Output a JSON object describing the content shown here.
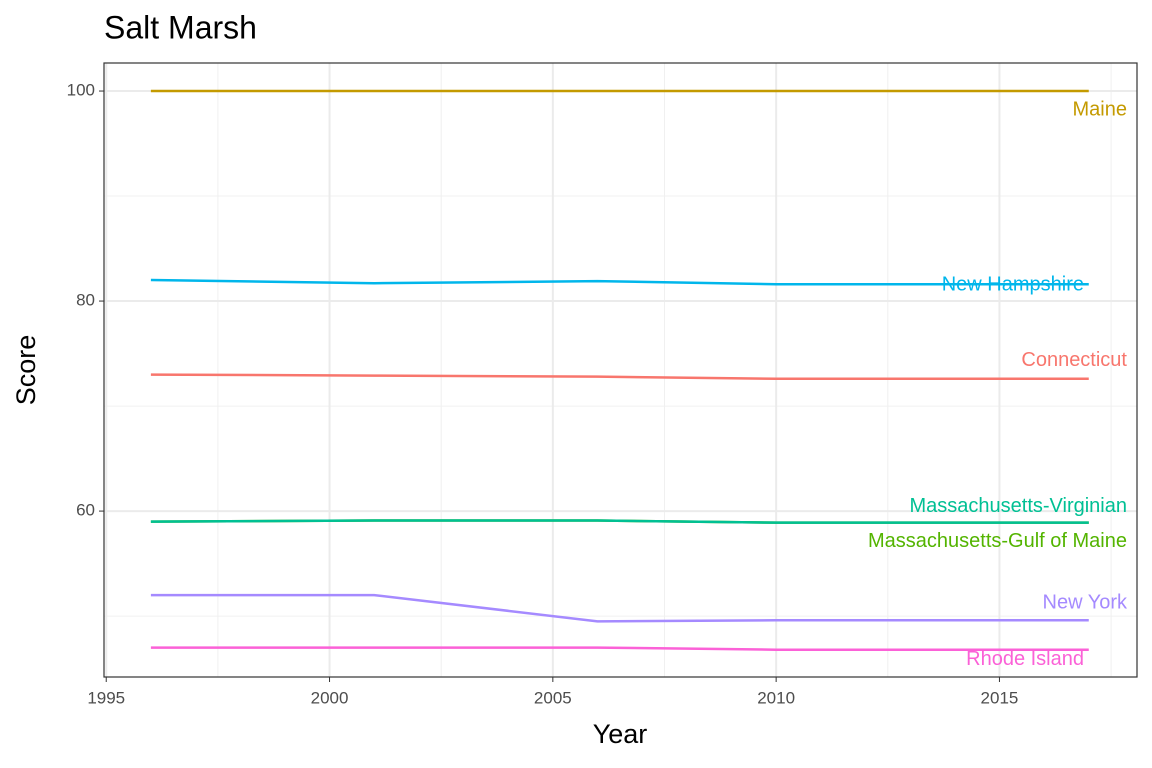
{
  "chart_data": {
    "type": "line",
    "title": "Salt Marsh",
    "x_label": "Year",
    "y_label": "Score",
    "x": [
      1996,
      2001,
      2006,
      2010,
      2017
    ],
    "series": [
      {
        "name": "Maine",
        "color": "#C49A00",
        "values": [
          100,
          100,
          100,
          100,
          100
        ]
      },
      {
        "name": "New Hampshire",
        "color": "#00B6EB",
        "values": [
          82.0,
          81.7,
          81.9,
          81.6,
          81.6
        ]
      },
      {
        "name": "Connecticut",
        "color": "#F8766D",
        "values": [
          73.0,
          72.9,
          72.8,
          72.6,
          72.6
        ]
      },
      {
        "name": "Massachusetts-Gulf of Maine",
        "color": "#53B400",
        "values": [
          59.0,
          59.1,
          59.1,
          58.9,
          58.9
        ]
      },
      {
        "name": "Massachusetts-Virginian",
        "color": "#00C094",
        "values": [
          59.0,
          59.1,
          59.1,
          58.9,
          58.9
        ]
      },
      {
        "name": "New York",
        "color": "#A58AFF",
        "values": [
          52.0,
          52.0,
          49.5,
          49.6,
          49.6
        ]
      },
      {
        "name": "Rhode Island",
        "color": "#FB61D7",
        "values": [
          47.0,
          47.0,
          47.0,
          46.8,
          46.8
        ]
      }
    ],
    "xlim": [
      1994.95,
      2018.08
    ],
    "ylim": [
      44.2,
      102.67
    ],
    "xticks": [
      1995,
      2000,
      2005,
      2010,
      2015
    ],
    "yticks": [
      60,
      80,
      100
    ],
    "xminor": [
      1997.5,
      2002.5,
      2007.5,
      2012.5,
      2017.5
    ],
    "yminor": [
      50,
      70,
      90
    ],
    "grid": true
  }
}
